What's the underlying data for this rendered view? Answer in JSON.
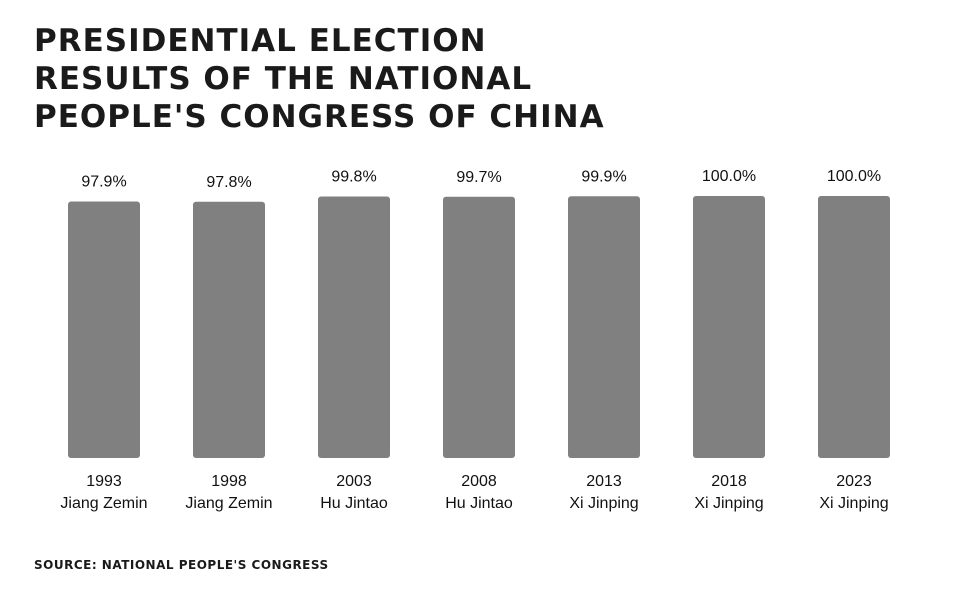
{
  "title": "Presidential election results of the National People's Congress of China",
  "source": "SOURCE: NATIONAL PEOPLE'S CONGRESS",
  "colors": {
    "bar": "#808080",
    "text": "#111111"
  },
  "chart_data": {
    "type": "bar",
    "title": "Presidential election results of the National People's Congress of China",
    "categories": [
      "1993",
      "1998",
      "2003",
      "2008",
      "2013",
      "2018",
      "2023"
    ],
    "sublabels": [
      "Jiang Zemin",
      "Jiang Zemin",
      "Hu Jintao",
      "Hu Jintao",
      "Xi Jinping",
      "Xi Jinping",
      "Xi Jinping"
    ],
    "values": [
      97.9,
      97.8,
      99.8,
      99.7,
      99.9,
      100.0,
      100.0
    ],
    "value_labels": [
      "97.9%",
      "97.8%",
      "99.8%",
      "99.7%",
      "99.9%",
      "100.0%",
      "100.0%"
    ],
    "ylim": [
      0,
      100
    ],
    "grid": false,
    "legend": "none"
  }
}
